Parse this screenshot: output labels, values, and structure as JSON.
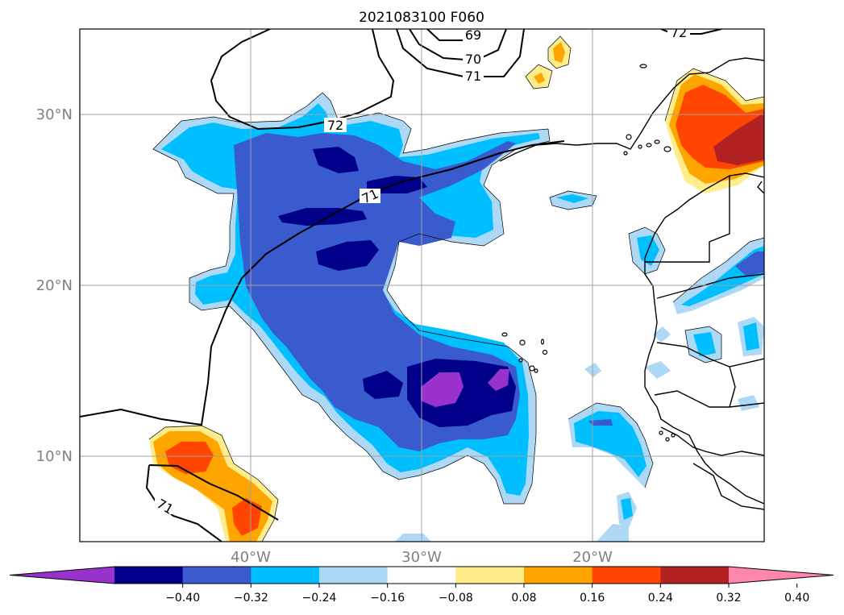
{
  "title": "2021083100 F060",
  "map": {
    "lon_range": [
      -50,
      -10
    ],
    "lat_range": [
      5,
      35
    ],
    "latitude_labels": [
      "30°N",
      "20°N",
      "10°N"
    ],
    "longitude_labels": [
      "40°W",
      "30°W",
      "20°W"
    ],
    "grid": true,
    "gridline_color": "#a0a0a0",
    "coastline_color": "#000000"
  },
  "contour_labels": [
    "69",
    "70",
    "71",
    "72",
    "72",
    "71",
    "71"
  ],
  "colorbar": {
    "orientation": "horizontal",
    "extend": "both",
    "tick_labels": [
      "−0.40",
      "−0.32",
      "−0.24",
      "−0.16",
      "−0.08",
      "0.08",
      "0.16",
      "0.24",
      "0.32",
      "0.40"
    ],
    "colors": [
      "#9932cc",
      "#00008b",
      "#3a5bcd",
      "#00bfff",
      "#add8f6",
      "#ffffff",
      "#ffec8b",
      "#ffa500",
      "#ff4500",
      "#b22222",
      "#ff88aa"
    ]
  }
}
